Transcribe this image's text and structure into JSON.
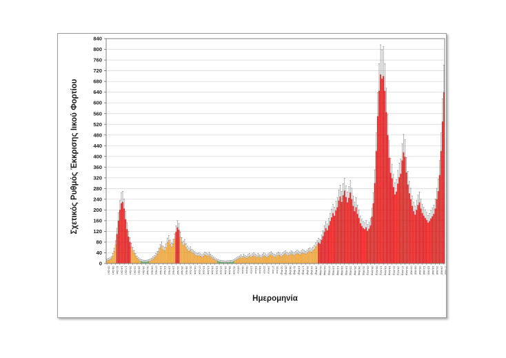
{
  "page": {
    "background": "#ffffff"
  },
  "chart_data": {
    "type": "bar",
    "title": "",
    "xlabel": "Ημερομηνία",
    "ylabel": "Σχετικός Ρυθμός Έκκρισης Ιικού Φορτίου",
    "ylim": [
      0,
      840
    ],
    "ytick_step": 40,
    "grid": true,
    "legend": "none",
    "bar_colors": {
      "green": "#44B04C",
      "orange": "#FFA420",
      "red": "#FE0000"
    },
    "error_bar_color": "#7f7f7f",
    "color_rules": {
      "green_below": 10,
      "red_from": 72,
      "override_segments": [
        {
          "from_day": 30,
          "to_day": 60,
          "red_from": 115
        }
      ]
    },
    "error_rule": {
      "base": 5,
      "factor": 0.15
    },
    "x_labels_every_days": 3,
    "x_labels": [
      "05-Οκτ",
      "08-Οκτ",
      "11-Οκτ",
      "14-Οκτ",
      "17-Οκτ",
      "20-Οκτ",
      "23-Οκτ",
      "26-Οκτ",
      "29-Οκτ",
      "01-Νοέ",
      "04-Νοέ",
      "07-Νοέ",
      "10-Νοέ",
      "13-Νοέ",
      "16-Νοέ",
      "19-Νοέ",
      "22-Νοέ",
      "25-Νοέ",
      "28-Νοέ",
      "01-Δεκ",
      "04-Δεκ",
      "07-Δεκ",
      "10-Δεκ",
      "13-Δεκ",
      "16-Δεκ",
      "19-Δεκ",
      "22-Δεκ",
      "25-Δεκ",
      "28-Δεκ",
      "31-Δεκ",
      "03-Ιαν",
      "06-Ιαν",
      "09-Ιαν",
      "12-Ιαν",
      "15-Ιαν",
      "18-Ιαν",
      "21-Ιαν",
      "24-Ιαν",
      "27-Ιαν",
      "30-Ιαν",
      "02-Φεβ",
      "05-Φεβ",
      "08-Φεβ",
      "11-Φεβ",
      "14-Φεβ",
      "17-Φεβ",
      "20-Φεβ",
      "23-Φεβ",
      "26-Φεβ",
      "01-Μαρ",
      "04-Μαρ",
      "07-Μαρ",
      "10-Μαρ",
      "13-Μαρ",
      "16-Μαρ",
      "19-Μαρ",
      "22-Μαρ",
      "25-Μαρ",
      "28-Μαρ",
      "31-Μαρ",
      "03-Απρ",
      "06-Απρ",
      "09-Απρ",
      "12-Απρ",
      "15-Απρ",
      "18-Απρ",
      "21-Απρ",
      "24-Απρ",
      "27-Απρ",
      "30-Απρ",
      "03-Μαΐ",
      "06-Μαΐ",
      "09-Μαΐ",
      "12-Μαΐ",
      "15-Μαΐ",
      "18-Μαΐ",
      "21-Μαΐ",
      "24-Μαΐ",
      "27-Μαΐ"
    ],
    "values": [
      10,
      12,
      14,
      18,
      28,
      45,
      70,
      110,
      160,
      200,
      225,
      230,
      205,
      165,
      128,
      100,
      80,
      62,
      48,
      38,
      28,
      20,
      14,
      10,
      8,
      7,
      6,
      6,
      7,
      8,
      10,
      13,
      17,
      22,
      28,
      35,
      45,
      58,
      66,
      52,
      48,
      60,
      78,
      86,
      72,
      62,
      74,
      92,
      118,
      135,
      126,
      98,
      80,
      68,
      74,
      60,
      52,
      46,
      50,
      42,
      38,
      34,
      30,
      28,
      31,
      27,
      24,
      27,
      33,
      30,
      27,
      32,
      26,
      21,
      17,
      14,
      11,
      9,
      7,
      6,
      5,
      5,
      4,
      4,
      5,
      5,
      6,
      6,
      8,
      11,
      14,
      17,
      20,
      24,
      19,
      26,
      22,
      20,
      25,
      28,
      23,
      27,
      31,
      26,
      23,
      28,
      24,
      21,
      26,
      30,
      27,
      23,
      27,
      31,
      34,
      29,
      26,
      24,
      29,
      33,
      30,
      26,
      30,
      34,
      37,
      32,
      29,
      33,
      37,
      34,
      31,
      35,
      39,
      36,
      33,
      37,
      41,
      38,
      35,
      39,
      44,
      47,
      43,
      49,
      54,
      63,
      70,
      78,
      74,
      88,
      102,
      118,
      132,
      124,
      142,
      158,
      172,
      188,
      178,
      198,
      210,
      235,
      250,
      230,
      255,
      272,
      248,
      228,
      245,
      265,
      240,
      215,
      195,
      210,
      185,
      170,
      150,
      140,
      132,
      128,
      135,
      122,
      130,
      142,
      175,
      225,
      300,
      420,
      550,
      645,
      706,
      690,
      700,
      645,
      565,
      480,
      395,
      338,
      318,
      285,
      258,
      268,
      298,
      322,
      335,
      385,
      415,
      398,
      340,
      295,
      262,
      240,
      215,
      195,
      182,
      200,
      218,
      228,
      205,
      188,
      178,
      170,
      162,
      152,
      158,
      168,
      176,
      185,
      205,
      240,
      270,
      330,
      420,
      530,
      640
    ]
  }
}
